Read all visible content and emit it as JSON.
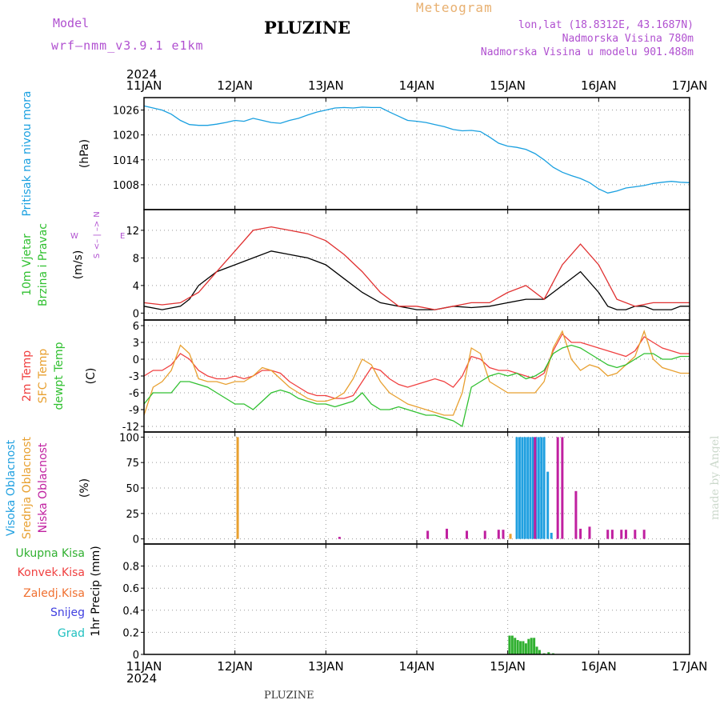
{
  "header": {
    "model_label": "Model",
    "model_name": "wrf–nmm_v3.9.1 e1km",
    "location": "PLUZINE",
    "meteogram": "Meteogram",
    "lonlat": "lon,lat (18.8312E, 43.1687N)",
    "altitude": "Nadmorska Visina 780m",
    "model_altitude": "Nadmorska Visina u modelu 901.488m",
    "watermark": "made by Angel",
    "footer": "PLUZINE"
  },
  "time_axis": {
    "year": "2024",
    "labels": [
      "11JAN",
      "12JAN",
      "13JAN",
      "14JAN",
      "15JAN",
      "16JAN",
      "17JAN"
    ]
  },
  "wind_key": {
    "w": "W",
    "e": "E",
    "n": "N",
    "s": "S",
    "arrow": "<– | –>"
  },
  "colors": {
    "pressure": "#1aa0e0",
    "temp2m": "#f04040",
    "sfc": "#e8a030",
    "dewpt": "#30c030",
    "high_cloud": "#20a0e0",
    "mid_cloud": "#e8a030",
    "low_cloud": "#c020a0",
    "total_precip": "#30b030",
    "conv": "#f04040",
    "frozen": "#f07030",
    "snow": "#4040e0",
    "hail": "#20c0c0",
    "axis_label_purple": "#b050d0"
  },
  "chart_data": [
    {
      "type": "line",
      "title": "",
      "ylabel": [
        "Pritisak na nivou mora",
        "(hPa)"
      ],
      "ylabel_colors": [
        "#1aa0e0",
        "#000000"
      ],
      "ylim": [
        1002,
        1029
      ],
      "yticks": [
        1008,
        1014,
        1020,
        1026
      ],
      "xlim": [
        0,
        6
      ],
      "grid": true,
      "series": [
        {
          "color": "#1aa0e0",
          "x": [
            0,
            0.1,
            0.2,
            0.3,
            0.4,
            0.5,
            0.6,
            0.7,
            0.8,
            0.9,
            1.0,
            1.1,
            1.2,
            1.3,
            1.4,
            1.5,
            1.6,
            1.7,
            1.8,
            1.9,
            2.0,
            2.1,
            2.2,
            2.3,
            2.4,
            2.5,
            2.6,
            2.7,
            2.8,
            2.9,
            3.0,
            3.1,
            3.2,
            3.3,
            3.4,
            3.5,
            3.6,
            3.7,
            3.8,
            3.9,
            4.0,
            4.1,
            4.2,
            4.3,
            4.4,
            4.5,
            4.6,
            4.7,
            4.8,
            4.9,
            5.0,
            5.1,
            5.2,
            5.3,
            5.4,
            5.5,
            5.6,
            5.7,
            5.8,
            5.9,
            6.0
          ],
          "y": [
            1027,
            1026.5,
            1026,
            1025,
            1023.5,
            1022.5,
            1022.3,
            1022.3,
            1022.6,
            1023,
            1023.5,
            1023.3,
            1024,
            1023.5,
            1023,
            1022.8,
            1023.5,
            1024,
            1024.8,
            1025.5,
            1026,
            1026.5,
            1026.6,
            1026.5,
            1026.7,
            1026.6,
            1026.6,
            1025.5,
            1024.5,
            1023.5,
            1023.3,
            1023,
            1022.5,
            1022,
            1021.3,
            1021,
            1021.1,
            1020.8,
            1019.5,
            1018,
            1017.3,
            1017,
            1016.5,
            1015.5,
            1014,
            1012.2,
            1011,
            1010.2,
            1009.5,
            1008.5,
            1007,
            1006,
            1006.5,
            1007.2,
            1007.5,
            1007.8,
            1008.3,
            1008.6,
            1008.8,
            1008.6,
            1008.5
          ]
        }
      ]
    },
    {
      "type": "line",
      "title": "",
      "ylabel": [
        "10m Vjetar",
        "Brzina i Pravac",
        "(m/s)"
      ],
      "ylabel_colors": [
        "#30c030",
        "#30c030",
        "#000000"
      ],
      "ylim": [
        -1,
        15
      ],
      "yticks": [
        0,
        4,
        8,
        12
      ],
      "xlim": [
        0,
        6
      ],
      "grid": true,
      "series": [
        {
          "name": "",
          "color": "#000000",
          "x": [
            0,
            0.2,
            0.4,
            0.5,
            0.6,
            0.8,
            1.0,
            1.2,
            1.4,
            1.6,
            1.8,
            2.0,
            2.2,
            2.4,
            2.6,
            2.8,
            3.0,
            3.2,
            3.4,
            3.6,
            3.8,
            4.0,
            4.2,
            4.4,
            4.6,
            4.8,
            5.0,
            5.1,
            5.2,
            5.3,
            5.4,
            5.5,
            5.6,
            5.7,
            5.8,
            5.9,
            6.0
          ],
          "y": [
            1,
            0.5,
            1,
            2,
            4,
            6,
            7,
            8,
            9,
            8.5,
            8,
            7,
            5,
            3,
            1.5,
            1,
            0.5,
            0.5,
            1,
            0.8,
            1,
            1.5,
            2,
            2,
            4,
            6,
            3,
            1,
            0.5,
            0.5,
            1,
            1,
            0.5,
            0.5,
            0.5,
            1,
            1
          ]
        },
        {
          "name": "",
          "color": "#e03030",
          "x": [
            0,
            0.2,
            0.4,
            0.6,
            0.8,
            1.0,
            1.2,
            1.4,
            1.6,
            1.8,
            2.0,
            2.2,
            2.4,
            2.6,
            2.8,
            3.0,
            3.2,
            3.4,
            3.6,
            3.8,
            4.0,
            4.2,
            4.4,
            4.6,
            4.8,
            5.0,
            5.2,
            5.4,
            5.6,
            5.8,
            6.0
          ],
          "y": [
            1.5,
            1.2,
            1.5,
            3,
            6,
            9,
            12,
            12.5,
            12,
            11.5,
            10.5,
            8.5,
            6,
            3,
            1,
            1,
            0.5,
            1,
            1.5,
            1.5,
            3,
            4,
            2,
            7,
            10,
            7,
            2,
            1,
            1.5,
            1.5,
            1.5
          ]
        }
      ]
    },
    {
      "type": "line",
      "title": "",
      "ylabel": [
        "2m Temp",
        "SFC Temp",
        "dewpt Temp",
        "(C)"
      ],
      "ylabel_colors": [
        "#f04040",
        "#e8a030",
        "#30c030",
        "#000000"
      ],
      "ylim": [
        -13,
        7
      ],
      "yticks": [
        -12,
        -9,
        -6,
        -3,
        0,
        3,
        6
      ],
      "xlim": [
        0,
        6
      ],
      "grid": true,
      "series": [
        {
          "name": "2m Temp",
          "color": "#f04040",
          "x": [
            0,
            0.1,
            0.2,
            0.3,
            0.4,
            0.5,
            0.6,
            0.7,
            0.8,
            0.9,
            1.0,
            1.1,
            1.2,
            1.3,
            1.4,
            1.5,
            1.6,
            1.7,
            1.8,
            1.9,
            2.0,
            2.1,
            2.2,
            2.3,
            2.4,
            2.5,
            2.6,
            2.7,
            2.8,
            2.9,
            3.0,
            3.1,
            3.2,
            3.3,
            3.4,
            3.5,
            3.6,
            3.7,
            3.8,
            3.9,
            4.0,
            4.1,
            4.2,
            4.3,
            4.4,
            4.5,
            4.6,
            4.7,
            4.8,
            4.9,
            5.0,
            5.1,
            5.2,
            5.3,
            5.4,
            5.5,
            5.6,
            5.7,
            5.8,
            5.9,
            6.0
          ],
          "y": [
            -3,
            -2,
            -2,
            -1,
            1,
            0,
            -2,
            -3,
            -3.5,
            -3.5,
            -3,
            -3.5,
            -3,
            -2,
            -2,
            -2.5,
            -4,
            -5,
            -6,
            -6.5,
            -6.5,
            -7,
            -7,
            -6.5,
            -4,
            -1.5,
            -2,
            -3.5,
            -4.5,
            -5,
            -4.5,
            -4,
            -3.5,
            -4,
            -5,
            -3,
            0.5,
            0,
            -1.5,
            -2,
            -2,
            -2.5,
            -3,
            -3.5,
            -2.5,
            1.5,
            4.5,
            3,
            3,
            2.5,
            2,
            1.5,
            1,
            0.5,
            1.5,
            4,
            3,
            2,
            1.5,
            1,
            1
          ]
        },
        {
          "name": "SFC Temp",
          "color": "#e8a030",
          "x": [
            0,
            0.1,
            0.2,
            0.3,
            0.4,
            0.5,
            0.6,
            0.7,
            0.8,
            0.9,
            1.0,
            1.1,
            1.2,
            1.3,
            1.4,
            1.5,
            1.6,
            1.7,
            1.8,
            1.9,
            2.0,
            2.1,
            2.2,
            2.3,
            2.4,
            2.5,
            2.6,
            2.7,
            2.8,
            2.9,
            3.0,
            3.1,
            3.2,
            3.3,
            3.4,
            3.5,
            3.6,
            3.7,
            3.8,
            3.9,
            4.0,
            4.1,
            4.2,
            4.3,
            4.4,
            4.5,
            4.6,
            4.7,
            4.8,
            4.9,
            5.0,
            5.1,
            5.2,
            5.3,
            5.4,
            5.5,
            5.6,
            5.7,
            5.8,
            5.9,
            6.0
          ],
          "y": [
            -10,
            -5,
            -4,
            -2,
            2.5,
            1,
            -3.5,
            -4,
            -4,
            -4.5,
            -4,
            -4,
            -3,
            -1.5,
            -2,
            -3.5,
            -5,
            -6,
            -7,
            -7.5,
            -7.5,
            -7,
            -6,
            -3.5,
            0,
            -1,
            -4,
            -6,
            -7,
            -8,
            -8.5,
            -9,
            -9.5,
            -10,
            -10,
            -6,
            2,
            1,
            -4,
            -5,
            -6,
            -6,
            -6,
            -6,
            -4,
            2,
            5,
            0,
            -2,
            -1,
            -1.5,
            -3,
            -2.5,
            -1,
            0.5,
            5,
            0,
            -1.5,
            -2,
            -2.5,
            -2.5
          ]
        },
        {
          "name": "dewpt Temp",
          "color": "#30c030",
          "x": [
            0,
            0.1,
            0.2,
            0.3,
            0.4,
            0.5,
            0.6,
            0.7,
            0.8,
            0.9,
            1.0,
            1.1,
            1.2,
            1.3,
            1.4,
            1.5,
            1.6,
            1.7,
            1.8,
            1.9,
            2.0,
            2.1,
            2.2,
            2.3,
            2.4,
            2.5,
            2.6,
            2.7,
            2.8,
            2.9,
            3.0,
            3.1,
            3.2,
            3.3,
            3.4,
            3.5,
            3.6,
            3.7,
            3.8,
            3.9,
            4.0,
            4.1,
            4.2,
            4.3,
            4.4,
            4.5,
            4.6,
            4.7,
            4.8,
            4.9,
            5.0,
            5.1,
            5.2,
            5.3,
            5.4,
            5.5,
            5.6,
            5.7,
            5.8,
            5.9,
            6.0
          ],
          "y": [
            -8,
            -6,
            -6,
            -6,
            -4,
            -4,
            -4.5,
            -5,
            -6,
            -7,
            -8,
            -8,
            -9,
            -7.5,
            -6,
            -5.5,
            -6,
            -7,
            -7.5,
            -8,
            -8,
            -8.5,
            -8,
            -7.5,
            -6,
            -8,
            -9,
            -9,
            -8.5,
            -9,
            -9.5,
            -10,
            -10,
            -10.5,
            -11,
            -12,
            -5,
            -4,
            -3,
            -2.5,
            -3,
            -2.5,
            -3.5,
            -3,
            -2,
            1,
            2,
            2.5,
            2,
            1,
            0,
            -1,
            -1.5,
            -1,
            0,
            1,
            1,
            0,
            0,
            0.5,
            0.5
          ]
        }
      ]
    },
    {
      "type": "bar",
      "title": "",
      "ylabel": [
        "Visoka Oblacnost",
        "Srednja Oblacnost",
        "Niska Oblacnost",
        "(%)"
      ],
      "ylabel_colors": [
        "#20a0e0",
        "#e8a030",
        "#c020a0",
        "#000000"
      ],
      "ylim": [
        -5,
        105
      ],
      "yticks": [
        0,
        25,
        50,
        75,
        100
      ],
      "xlim": [
        0,
        6
      ],
      "grid": true,
      "series": [
        {
          "name": "Visoka Oblacnost",
          "color": "#20a0e0",
          "x": [
            4.1,
            4.13,
            4.16,
            4.19,
            4.22,
            4.25,
            4.28,
            4.31,
            4.34,
            4.37,
            4.4,
            4.44,
            4.48
          ],
          "values": [
            100,
            100,
            100,
            100,
            100,
            100,
            100,
            100,
            100,
            100,
            100,
            66,
            6
          ]
        },
        {
          "name": "Srednja Oblacnost",
          "color": "#e8a030",
          "x": [
            1.03,
            4.03
          ],
          "values": [
            100,
            5
          ]
        },
        {
          "name": "Niska Oblacnost",
          "color": "#c020a0",
          "x": [
            2.15,
            3.12,
            3.33,
            3.55,
            3.75,
            3.9,
            3.95,
            4.3,
            4.55,
            4.6,
            4.75,
            4.8,
            4.9,
            5.1,
            5.15,
            5.25,
            5.3,
            5.4,
            5.5
          ],
          "values": [
            2,
            8,
            10,
            8,
            8,
            9,
            9,
            100,
            100,
            100,
            47,
            10,
            12,
            9,
            9,
            9,
            9,
            9,
            9
          ]
        }
      ]
    },
    {
      "type": "bar",
      "title": "",
      "ylabel": [
        "Ukupna Kisa",
        "Konvek.Kisa",
        "Zaledj.Kisa",
        "Snijeg",
        "Grad",
        "1hr Precip (mm)"
      ],
      "ylabel_colors": [
        "#30b030",
        "#f04040",
        "#f07030",
        "#4040e0",
        "#20c0c0",
        "#000000"
      ],
      "ylim": [
        0,
        1
      ],
      "yticks": [
        0,
        0.2,
        0.4,
        0.6,
        0.8
      ],
      "xlim": [
        0,
        6
      ],
      "grid": true,
      "series": [
        {
          "name": "Ukupna Kisa",
          "color": "#30b030",
          "x": [
            4.02,
            4.05,
            4.08,
            4.11,
            4.14,
            4.17,
            4.2,
            4.23,
            4.26,
            4.29,
            4.32,
            4.35,
            4.4,
            4.45,
            4.5
          ],
          "values": [
            0.17,
            0.17,
            0.15,
            0.13,
            0.12,
            0.12,
            0.1,
            0.14,
            0.15,
            0.15,
            0.07,
            0.04,
            0.01,
            0.02,
            0.01
          ]
        }
      ]
    }
  ]
}
